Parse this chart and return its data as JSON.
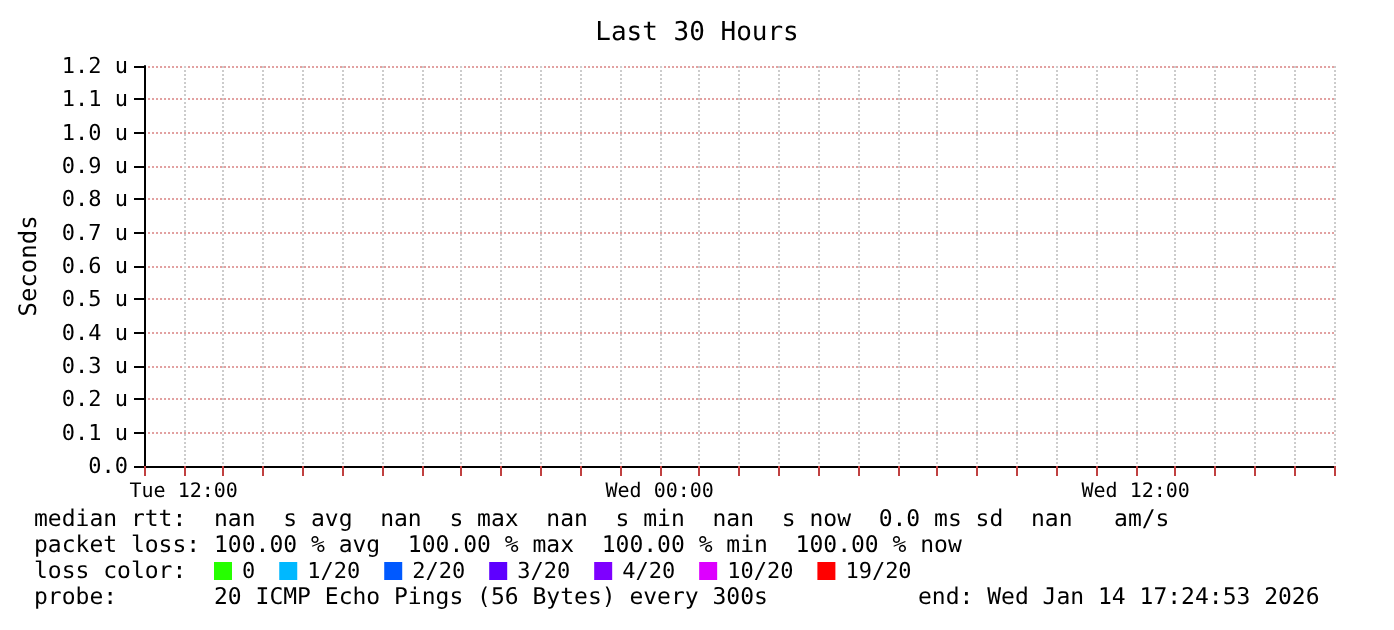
{
  "chart_data": {
    "type": "line",
    "title": "Last 30 Hours",
    "ylabel": "Seconds",
    "legend_title": "loss color:",
    "categories": [
      null,
      "Tue 12:00",
      null,
      null,
      null,
      null,
      null,
      null,
      null,
      null,
      null,
      null,
      null,
      "Wed 00:00",
      null,
      null,
      null,
      null,
      null,
      null,
      null,
      null,
      null,
      null,
      null,
      "Wed 12:00",
      null,
      null,
      null,
      null,
      null
    ],
    "ylim": [
      0,
      1.2
    ],
    "yticks": [
      {
        "value": 0,
        "label": "0.0"
      },
      {
        "value": 0.1,
        "label": "0.1 u"
      },
      {
        "value": 0.2,
        "label": "0.2 u"
      },
      {
        "value": 0.3,
        "label": "0.3 u"
      },
      {
        "value": 0.4,
        "label": "0.4 u"
      },
      {
        "value": 0.5,
        "label": "0.5 u"
      },
      {
        "value": 0.6,
        "label": "0.6 u"
      },
      {
        "value": 0.7,
        "label": "0.7 u"
      },
      {
        "value": 0.8,
        "label": "0.8 u"
      },
      {
        "value": 0.9,
        "label": "0.9 u"
      },
      {
        "value": 1.0,
        "label": "1.0 u"
      },
      {
        "value": 1.1,
        "label": "1.1 u"
      },
      {
        "value": 1.2,
        "label": "1.2 u"
      }
    ],
    "series": [
      {
        "name": "0",
        "color": "#26ff00",
        "values": [
          null,
          null,
          null,
          null,
          null,
          null,
          null,
          null,
          null,
          null,
          null,
          null,
          null,
          null,
          null,
          null,
          null,
          null,
          null,
          null,
          null,
          null,
          null,
          null,
          null,
          null,
          null,
          null,
          null,
          null,
          null
        ]
      },
      {
        "name": "1/20",
        "color": "#00b8ff",
        "values": [
          null,
          null,
          null,
          null,
          null,
          null,
          null,
          null,
          null,
          null,
          null,
          null,
          null,
          null,
          null,
          null,
          null,
          null,
          null,
          null,
          null,
          null,
          null,
          null,
          null,
          null,
          null,
          null,
          null,
          null,
          null
        ]
      },
      {
        "name": "2/20",
        "color": "#0059ff",
        "values": [
          null,
          null,
          null,
          null,
          null,
          null,
          null,
          null,
          null,
          null,
          null,
          null,
          null,
          null,
          null,
          null,
          null,
          null,
          null,
          null,
          null,
          null,
          null,
          null,
          null,
          null,
          null,
          null,
          null,
          null,
          null
        ]
      },
      {
        "name": "3/20",
        "color": "#5e00ff",
        "values": [
          null,
          null,
          null,
          null,
          null,
          null,
          null,
          null,
          null,
          null,
          null,
          null,
          null,
          null,
          null,
          null,
          null,
          null,
          null,
          null,
          null,
          null,
          null,
          null,
          null,
          null,
          null,
          null,
          null,
          null,
          null
        ]
      },
      {
        "name": "4/20",
        "color": "#7e00ff",
        "values": [
          null,
          null,
          null,
          null,
          null,
          null,
          null,
          null,
          null,
          null,
          null,
          null,
          null,
          null,
          null,
          null,
          null,
          null,
          null,
          null,
          null,
          null,
          null,
          null,
          null,
          null,
          null,
          null,
          null,
          null,
          null
        ]
      },
      {
        "name": "10/20",
        "color": "#dd00ff",
        "values": [
          null,
          null,
          null,
          null,
          null,
          null,
          null,
          null,
          null,
          null,
          null,
          null,
          null,
          null,
          null,
          null,
          null,
          null,
          null,
          null,
          null,
          null,
          null,
          null,
          null,
          null,
          null,
          null,
          null,
          null,
          null
        ]
      },
      {
        "name": "19/20",
        "color": "#ff0000",
        "values": [
          null,
          null,
          null,
          null,
          null,
          null,
          null,
          null,
          null,
          null,
          null,
          null,
          null,
          null,
          null,
          null,
          null,
          null,
          null,
          null,
          null,
          null,
          null,
          null,
          null,
          null,
          null,
          null,
          null,
          null,
          null
        ]
      }
    ],
    "grid": true,
    "legend": "bottom",
    "annotations": [
      "median rtt:  nan  s avg  nan  s max  nan  s min  nan  s now  0.0 ms sd  nan   am/s",
      "packet loss: 100.00 % avg  100.00 % max  100.00 % min  100.00 % now",
      "probe:       20 ICMP Echo Pings (56 Bytes) every 300s",
      "end: Wed Jan 14 17:24:53 2026"
    ]
  }
}
